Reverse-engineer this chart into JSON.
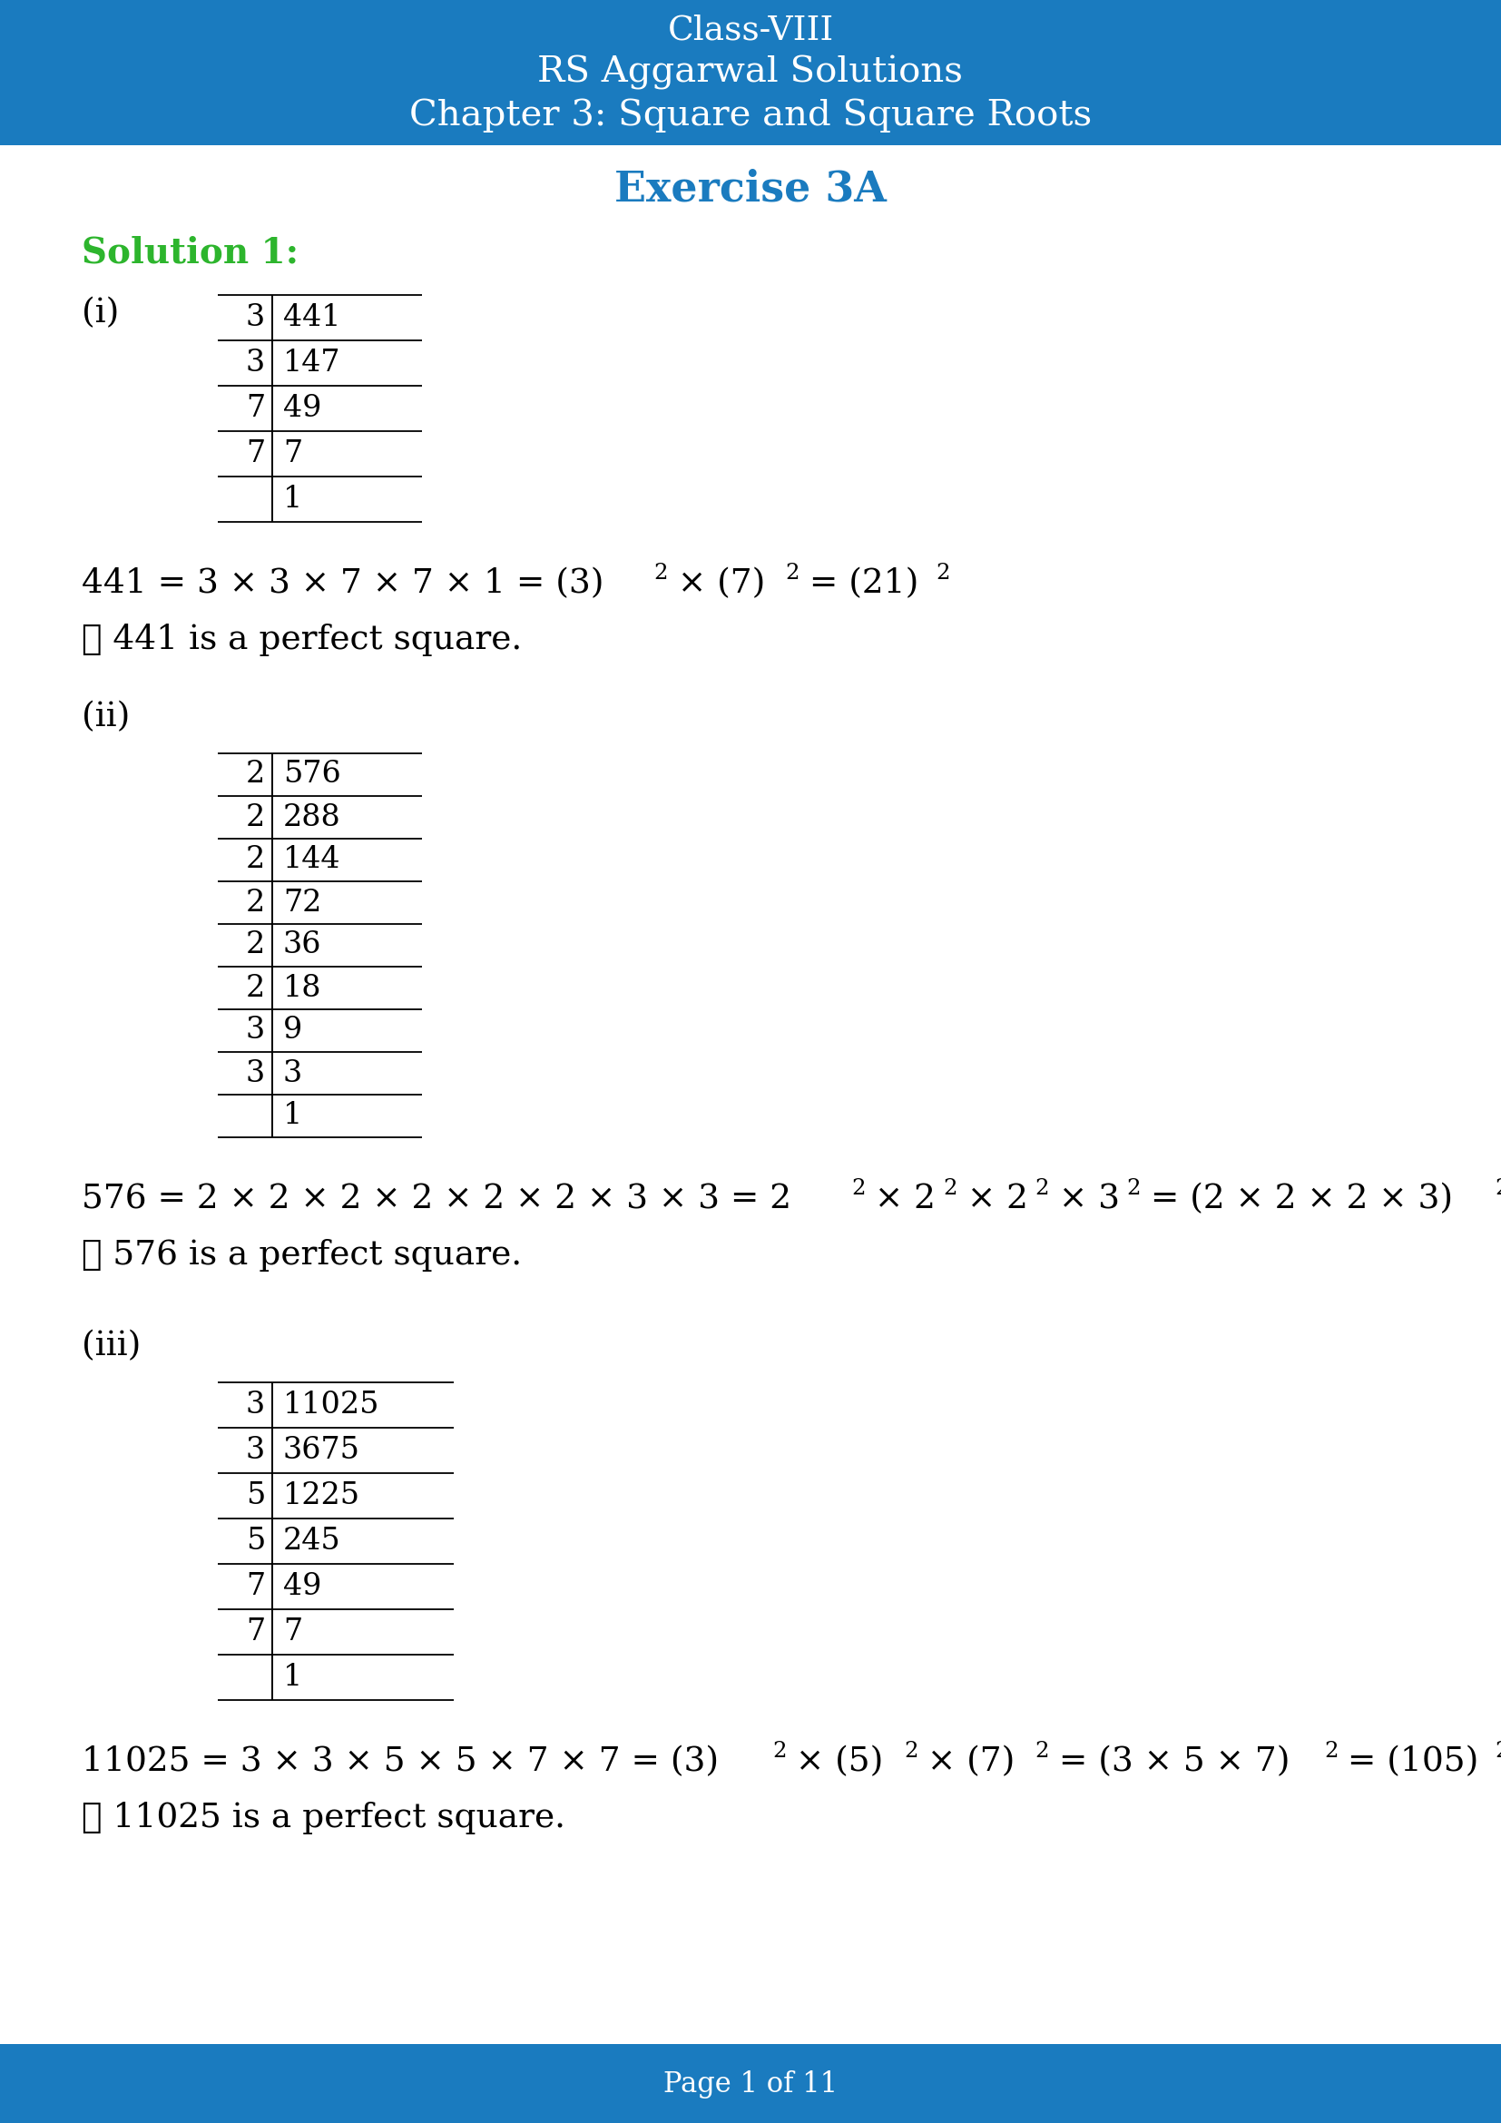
{
  "header_bg_color": "#1a7bbf",
  "header_text_color": "#ffffff",
  "footer_bg_color": "#1a7bbf",
  "footer_text_color": "#ffffff",
  "body_bg_color": "#ffffff",
  "exercise_color": "#1a7bbf",
  "solution_color": "#2db52d",
  "text_color": "#000000",
  "header_line1": "Class-VIII",
  "header_line2": "RS Aggarwal Solutions",
  "header_line3": "Chapter 3: Square and Square Roots",
  "exercise_title": "Exercise 3A",
  "solution_label": "Solution 1:",
  "footer_text": "Page 1 of 11",
  "part_i_label": "(i)",
  "part_ii_label": "(ii)",
  "part_iii_label": "(iii)",
  "table_i": [
    [
      "3",
      "441"
    ],
    [
      "3",
      "147"
    ],
    [
      "7",
      "49"
    ],
    [
      "7",
      "7"
    ],
    [
      "",
      "1"
    ]
  ],
  "table_ii": [
    [
      "2",
      "576"
    ],
    [
      "2",
      "288"
    ],
    [
      "2",
      "144"
    ],
    [
      "2",
      "72"
    ],
    [
      "2",
      "36"
    ],
    [
      "2",
      "18"
    ],
    [
      "3",
      "9"
    ],
    [
      "3",
      "3"
    ],
    [
      "",
      "1"
    ]
  ],
  "table_iii": [
    [
      "3",
      "11025"
    ],
    [
      "3",
      "3675"
    ],
    [
      "5",
      "1225"
    ],
    [
      "5",
      "245"
    ],
    [
      "7",
      "49"
    ],
    [
      "7",
      "7"
    ],
    [
      "",
      "1"
    ]
  ],
  "eq_i_perfect": "∴ 441 is a perfect square.",
  "eq_ii_perfect": "∴ 576 is a perfect square.",
  "eq_iii_perfect": "∴ 11025 is a perfect square."
}
